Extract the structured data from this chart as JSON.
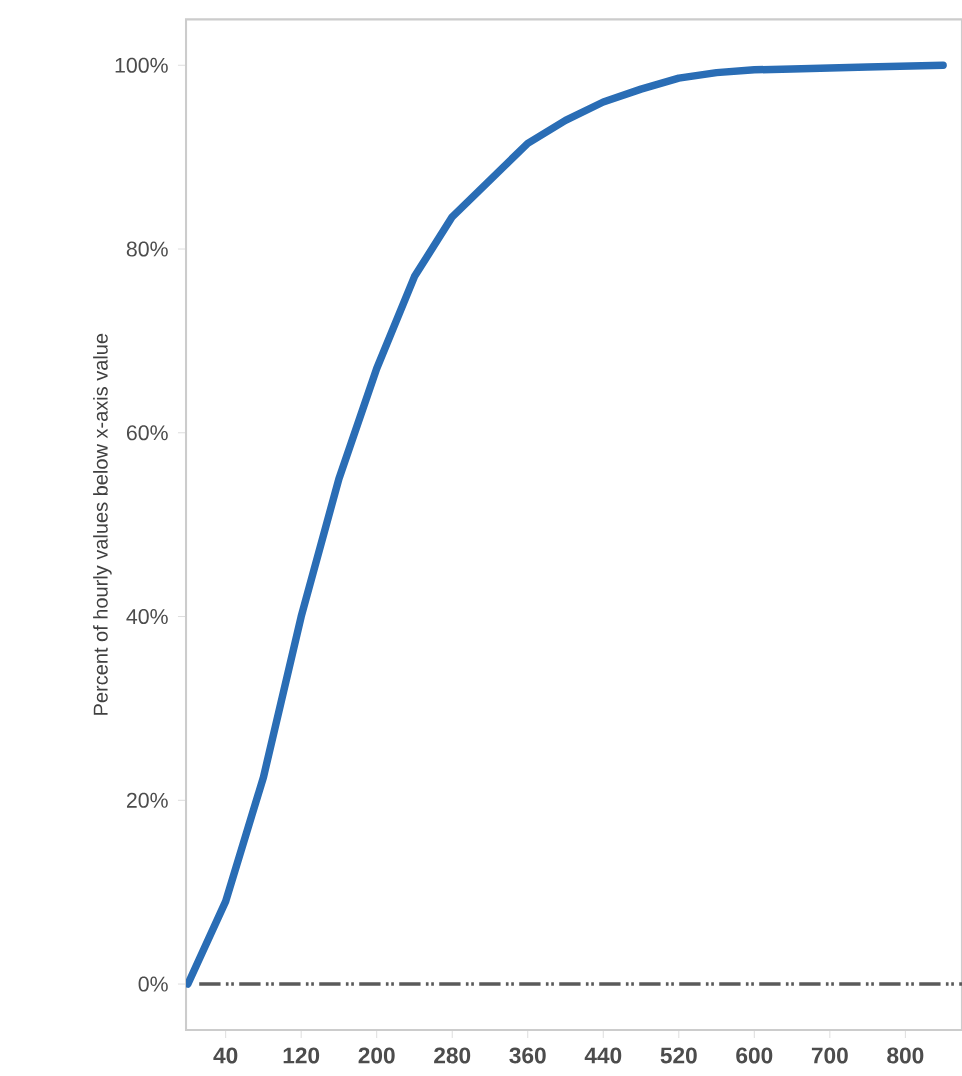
{
  "chart_data": {
    "type": "line",
    "ylabel": "Percent of hourly values below x-axis value",
    "categories": [
      null,
      "40",
      null,
      "120",
      null,
      "200",
      null,
      "280",
      null,
      "360",
      null,
      "440",
      null,
      "520",
      null,
      "600",
      null,
      "700",
      null,
      "800",
      null
    ],
    "values": [
      0,
      9,
      22.5,
      40,
      55,
      67,
      77,
      83.5,
      87.5,
      91.5,
      94,
      96,
      97.4,
      98.6,
      99.2,
      99.5,
      99.6,
      99.7,
      99.8,
      99.9,
      100
    ],
    "color": "#2a6db5",
    "line_style": "solid",
    "ylim": [
      -5,
      105
    ],
    "yticks": [
      {
        "value": 0,
        "label": "0%"
      },
      {
        "value": 20,
        "label": "20%"
      },
      {
        "value": 40,
        "label": "40%"
      },
      {
        "value": 60,
        "label": "60%"
      },
      {
        "value": 80,
        "label": "80%"
      },
      {
        "value": 100,
        "label": "100%"
      }
    ],
    "ref_lines": [
      {
        "axis": "y",
        "value": 0,
        "color": "#5a5a5a",
        "line_style": "dashed"
      }
    ]
  }
}
